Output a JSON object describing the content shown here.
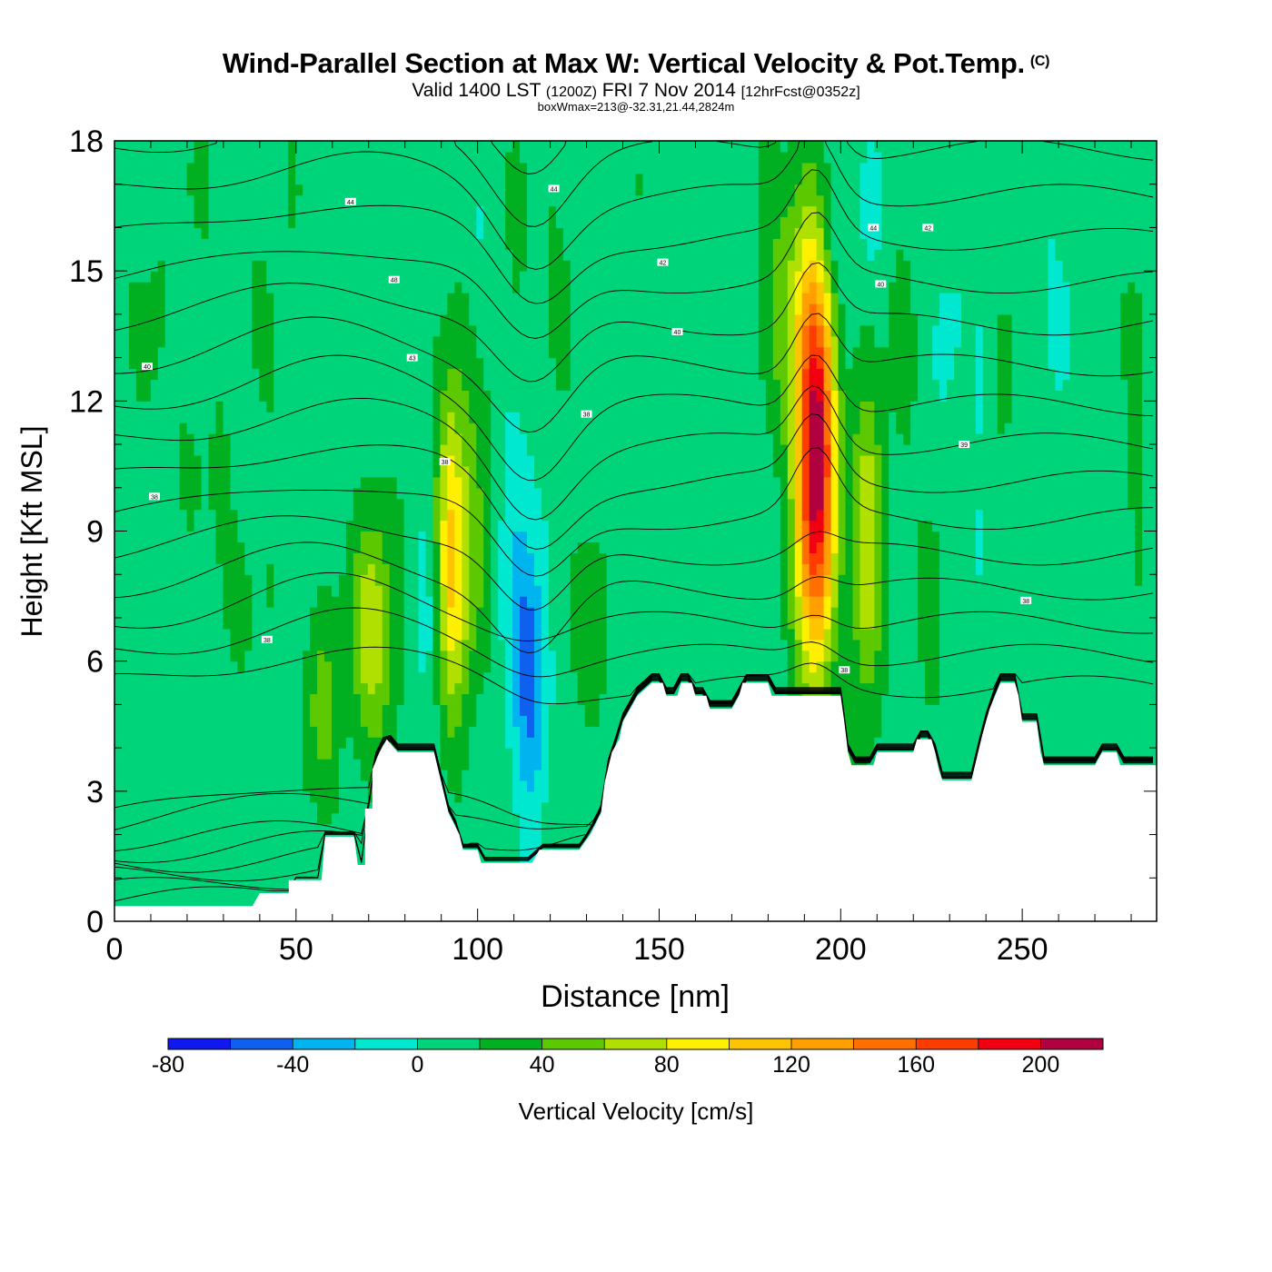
{
  "title": "Wind-Parallel Section at Max W: Vertical Velocity & Pot.Temp.",
  "copyright_mark": "(C)",
  "valid_prefix": "Valid 1400 LST",
  "valid_utc": "(1200Z)",
  "valid_date": "FRI 7 Nov 2014",
  "forecast_info": "[12hrFcst@0352z]",
  "box_info": "boxWmax=213@-32.31,21.44,2824m",
  "colors": {
    "background": "#ffffff",
    "contour": "#000000",
    "terrain": "#ffffff"
  },
  "chart_data": {
    "type": "heatmap",
    "xlabel": "Distance [nm]",
    "ylabel": "Height [Kft MSL]",
    "xlim": [
      0,
      287
    ],
    "ylim": [
      0,
      18
    ],
    "x_ticks": [
      0,
      50,
      100,
      150,
      200,
      250
    ],
    "y_ticks": [
      0,
      3,
      6,
      9,
      12,
      15,
      18
    ],
    "background_value": 10,
    "terrain_height_kft": [
      [
        0,
        0.35
      ],
      [
        10,
        0.35
      ],
      [
        20,
        0.35
      ],
      [
        30,
        0.35
      ],
      [
        38,
        0.35
      ],
      [
        40,
        0.65
      ],
      [
        48,
        0.65
      ],
      [
        48,
        0.95
      ],
      [
        57,
        0.95
      ],
      [
        58,
        1.95
      ],
      [
        66,
        1.95
      ],
      [
        67,
        1.3
      ],
      [
        69,
        1.3
      ],
      [
        69,
        2.6
      ],
      [
        71,
        2.6
      ],
      [
        71,
        3.5
      ],
      [
        73,
        3.9
      ],
      [
        75,
        4.2
      ],
      [
        78,
        3.9
      ],
      [
        88,
        3.9
      ],
      [
        90,
        3.2
      ],
      [
        92,
        2.5
      ],
      [
        95,
        2.0
      ],
      [
        96,
        1.65
      ],
      [
        100,
        1.65
      ],
      [
        101,
        1.35
      ],
      [
        115,
        1.35
      ],
      [
        117,
        1.65
      ],
      [
        128,
        1.65
      ],
      [
        131,
        2.0
      ],
      [
        134,
        2.5
      ],
      [
        135,
        3.2
      ],
      [
        137,
        3.9
      ],
      [
        139,
        4.2
      ],
      [
        140,
        4.6
      ],
      [
        142,
        4.9
      ],
      [
        144,
        5.2
      ],
      [
        148,
        5.5
      ],
      [
        151,
        5.5
      ],
      [
        152,
        5.2
      ],
      [
        155,
        5.2
      ],
      [
        156,
        5.5
      ],
      [
        159,
        5.5
      ],
      [
        160,
        5.2
      ],
      [
        163,
        5.2
      ],
      [
        164,
        4.9
      ],
      [
        170,
        4.9
      ],
      [
        172,
        5.2
      ],
      [
        173,
        5.5
      ],
      [
        180,
        5.5
      ],
      [
        181,
        5.2
      ],
      [
        200,
        5.2
      ],
      [
        201,
        4.6
      ],
      [
        202,
        3.9
      ],
      [
        203,
        3.6
      ],
      [
        209,
        3.6
      ],
      [
        210,
        3.9
      ],
      [
        220,
        3.9
      ],
      [
        221,
        4.2
      ],
      [
        225,
        4.2
      ],
      [
        226,
        3.9
      ],
      [
        227,
        3.5
      ],
      [
        228,
        3.25
      ],
      [
        236,
        3.25
      ],
      [
        237,
        3.6
      ],
      [
        239,
        4.3
      ],
      [
        241,
        4.9
      ],
      [
        244,
        5.5
      ],
      [
        248,
        5.5
      ],
      [
        249,
        5.2
      ],
      [
        250,
        4.6
      ],
      [
        254,
        4.6
      ],
      [
        255,
        3.9
      ],
      [
        256,
        3.6
      ],
      [
        270,
        3.6
      ],
      [
        272,
        3.9
      ],
      [
        276,
        3.9
      ],
      [
        277,
        3.6
      ],
      [
        287,
        3.6
      ]
    ],
    "vertical_velocity_cells": [
      {
        "x": 10,
        "y": 13.0,
        "sx": 4,
        "sy": 3.5,
        "a": 12
      },
      {
        "x": 22,
        "y": 16.0,
        "sx": 4,
        "sy": 2.5,
        "a": 10
      },
      {
        "x": 28,
        "y": 9.5,
        "sx": 7,
        "sy": 2.5,
        "a": 10
      },
      {
        "x": 38,
        "y": 7.0,
        "sx": 8,
        "sy": 1.5,
        "a": 6
      },
      {
        "x": 20,
        "y": 5.0,
        "sx": 8,
        "sy": 1.0,
        "a": -6
      },
      {
        "x": 33,
        "y": 3.5,
        "sx": 6,
        "sy": 1.0,
        "a": -6
      },
      {
        "x": 45,
        "y": 14.0,
        "sx": 6,
        "sy": 3.5,
        "a": 10
      },
      {
        "x": 57,
        "y": 5.0,
        "sx": 3.5,
        "sy": 1.6,
        "a": 38
      },
      {
        "x": 71,
        "y": 6.7,
        "sx": 4.5,
        "sy": 2.1,
        "a": 62
      },
      {
        "x": 86,
        "y": 7.5,
        "sx": 2.5,
        "sy": 2.0,
        "a": -18
      },
      {
        "x": 92.5,
        "y": 8.5,
        "sx": 3,
        "sy": 2.8,
        "a": 78
      },
      {
        "x": 98,
        "y": 9.0,
        "sx": 4,
        "sy": 2.8,
        "a": 40
      },
      {
        "x": 100,
        "y": 15.0,
        "sx": 2,
        "sy": 1.5,
        "a": -14
      },
      {
        "x": 112,
        "y": 8.0,
        "sx": 4.2,
        "sy": 3.0,
        "a": -32
      },
      {
        "x": 115,
        "y": 5.0,
        "sx": 3,
        "sy": 1.9,
        "a": -45
      },
      {
        "x": 111,
        "y": 16.0,
        "sx": 2,
        "sy": 1.5,
        "a": 18
      },
      {
        "x": 132,
        "y": 6.8,
        "sx": 4,
        "sy": 1.8,
        "a": 22
      },
      {
        "x": 121,
        "y": 14.0,
        "sx": 5,
        "sy": 2.5,
        "a": 12
      },
      {
        "x": 150,
        "y": 15.0,
        "sx": 5,
        "sy": 2.5,
        "a": 10
      },
      {
        "x": 186,
        "y": 14.5,
        "sx": 6,
        "sy": 2.5,
        "a": 38
      },
      {
        "x": 193,
        "y": 10.5,
        "sx": 3.8,
        "sy": 3.2,
        "a": 210
      },
      {
        "x": 207,
        "y": 8.5,
        "sx": 3,
        "sy": 2.6,
        "a": 70
      },
      {
        "x": 198,
        "y": 16.0,
        "sx": 3,
        "sy": 1.0,
        "a": -22
      },
      {
        "x": 208,
        "y": 16.5,
        "sx": 3,
        "sy": 1.2,
        "a": -20
      },
      {
        "x": 216,
        "y": 12.0,
        "sx": 4,
        "sy": 3.0,
        "a": 14
      },
      {
        "x": 229,
        "y": 13.0,
        "sx": 3,
        "sy": 2.0,
        "a": -14
      },
      {
        "x": 240,
        "y": 13.0,
        "sx": 2.5,
        "sy": 1.5,
        "a": -12
      },
      {
        "x": 226,
        "y": 7.5,
        "sx": 3,
        "sy": 2.0,
        "a": 18
      },
      {
        "x": 238,
        "y": 8.5,
        "sx": 3,
        "sy": 2.0,
        "a": -8
      },
      {
        "x": 245,
        "y": 12.5,
        "sx": 2,
        "sy": 1.2,
        "a": 24
      },
      {
        "x": 260,
        "y": 14.0,
        "sx": 7,
        "sy": 3.5,
        "a": -8
      },
      {
        "x": 282,
        "y": 12.0,
        "sx": 3,
        "sy": 3.0,
        "a": 16
      }
    ],
    "theta_contour_labels": [
      {
        "x": 9,
        "y": 12.8,
        "text": "40"
      },
      {
        "x": 11,
        "y": 9.8,
        "text": "38"
      },
      {
        "x": 65,
        "y": 16.6,
        "text": "44"
      },
      {
        "x": 77,
        "y": 14.8,
        "text": "48"
      },
      {
        "x": 82,
        "y": 13.0,
        "text": "43"
      },
      {
        "x": 42,
        "y": 6.5,
        "text": "38"
      },
      {
        "x": 91,
        "y": 10.6,
        "text": "38"
      },
      {
        "x": 121,
        "y": 16.9,
        "text": "44"
      },
      {
        "x": 130,
        "y": 11.7,
        "text": "38"
      },
      {
        "x": 151,
        "y": 15.2,
        "text": "42"
      },
      {
        "x": 155,
        "y": 13.6,
        "text": "40"
      },
      {
        "x": 209,
        "y": 16.0,
        "text": "44"
      },
      {
        "x": 224,
        "y": 16.0,
        "text": "42"
      },
      {
        "x": 211,
        "y": 14.7,
        "text": "40"
      },
      {
        "x": 234,
        "y": 11.0,
        "text": "39"
      },
      {
        "x": 201,
        "y": 5.8,
        "text": "38"
      },
      {
        "x": 251,
        "y": 7.4,
        "text": "38"
      }
    ]
  },
  "colorbar": {
    "label": "Vertical Velocity [cm/s]",
    "levels": [
      -80,
      -60,
      -40,
      -20,
      0,
      20,
      40,
      60,
      80,
      100,
      120,
      140,
      160,
      180,
      200,
      220
    ],
    "tick_labels": [
      "-80",
      "-40",
      "0",
      "40",
      "80",
      "120",
      "160",
      "200"
    ],
    "tick_values": [
      -80,
      -40,
      0,
      40,
      80,
      120,
      160,
      200
    ],
    "colors": [
      "#1018f0",
      "#1060f0",
      "#00b4f0",
      "#00e8d0",
      "#00d47a",
      "#00b020",
      "#5cc800",
      "#b0e000",
      "#fff000",
      "#ffc400",
      "#ffa000",
      "#ff7000",
      "#ff3c00",
      "#f00010",
      "#b00040"
    ]
  }
}
